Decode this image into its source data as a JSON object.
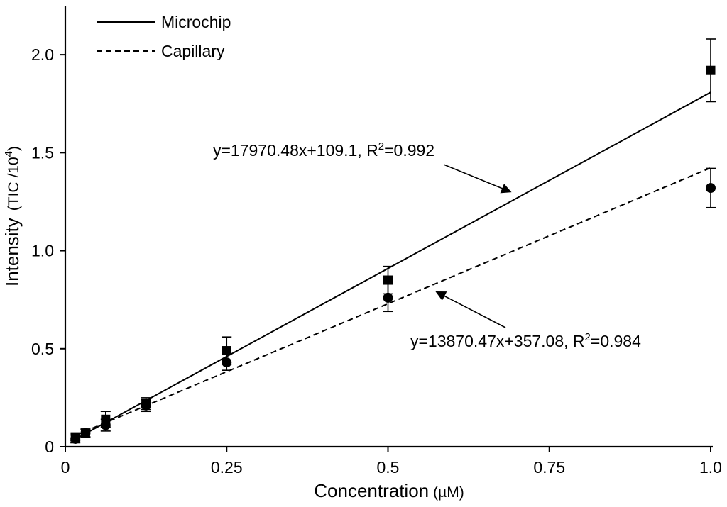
{
  "chart_data": {
    "type": "scatter",
    "title": "",
    "xlabel": "Concentration",
    "xlabel_unit": "(µM)",
    "ylabel": "Intensity",
    "ylabel_unit_prefix": "(TIC /10",
    "ylabel_unit_exp": "4",
    "ylabel_unit_suffix": ")",
    "xlim": [
      0,
      1.0
    ],
    "ylim": [
      0,
      2.25
    ],
    "xticks": [
      {
        "value": 0,
        "label": "0"
      },
      {
        "value": 0.25,
        "label": "0.25"
      },
      {
        "value": 0.5,
        "label": "0.5"
      },
      {
        "value": 0.75,
        "label": "0.75"
      },
      {
        "value": 1.0,
        "label": "1.0"
      }
    ],
    "yticks": [
      {
        "value": 0,
        "label": "0"
      },
      {
        "value": 0.5,
        "label": "0.5"
      },
      {
        "value": 1.0,
        "label": "1.0"
      },
      {
        "value": 1.5,
        "label": "1.5"
      },
      {
        "value": 2.0,
        "label": "2.0"
      }
    ],
    "grid": false,
    "legend_position": "top-left",
    "series": [
      {
        "name": "Microchip",
        "marker": "square",
        "line_style": "solid",
        "x": [
          0.0156,
          0.0313,
          0.0625,
          0.125,
          0.25,
          0.5,
          1.0
        ],
        "y": [
          0.05,
          0.07,
          0.14,
          0.22,
          0.49,
          0.85,
          1.92
        ],
        "err": [
          0.02,
          0.02,
          0.04,
          0.03,
          0.07,
          0.07,
          0.16
        ],
        "fit": {
          "slope": 1.797,
          "intercept": 0.011,
          "x_range": [
            0.0156,
            1.0
          ]
        }
      },
      {
        "name": "Capillary",
        "marker": "circle",
        "line_style": "dashed",
        "x": [
          0.0156,
          0.0313,
          0.0625,
          0.125,
          0.25,
          0.5,
          1.0
        ],
        "y": [
          0.04,
          0.07,
          0.11,
          0.21,
          0.43,
          0.76,
          1.32
        ],
        "err": [
          0.02,
          0.02,
          0.03,
          0.03,
          0.04,
          0.07,
          0.1
        ],
        "fit": {
          "slope": 1.387,
          "intercept": 0.036,
          "x_range": [
            0.0156,
            1.0
          ]
        }
      }
    ],
    "annotations": [
      {
        "series": "Microchip",
        "prefix": "y=17970.48x+109.1, R",
        "sup": "2",
        "suffix": "=0.992",
        "arrow_to": {
          "x": 0.69,
          "y": 1.3
        }
      },
      {
        "series": "Capillary",
        "prefix": "y=13870.47x+357.08, R",
        "sup": "2",
        "suffix": "=0.984",
        "arrow_to": {
          "x": 0.575,
          "y": 0.79
        }
      }
    ]
  }
}
